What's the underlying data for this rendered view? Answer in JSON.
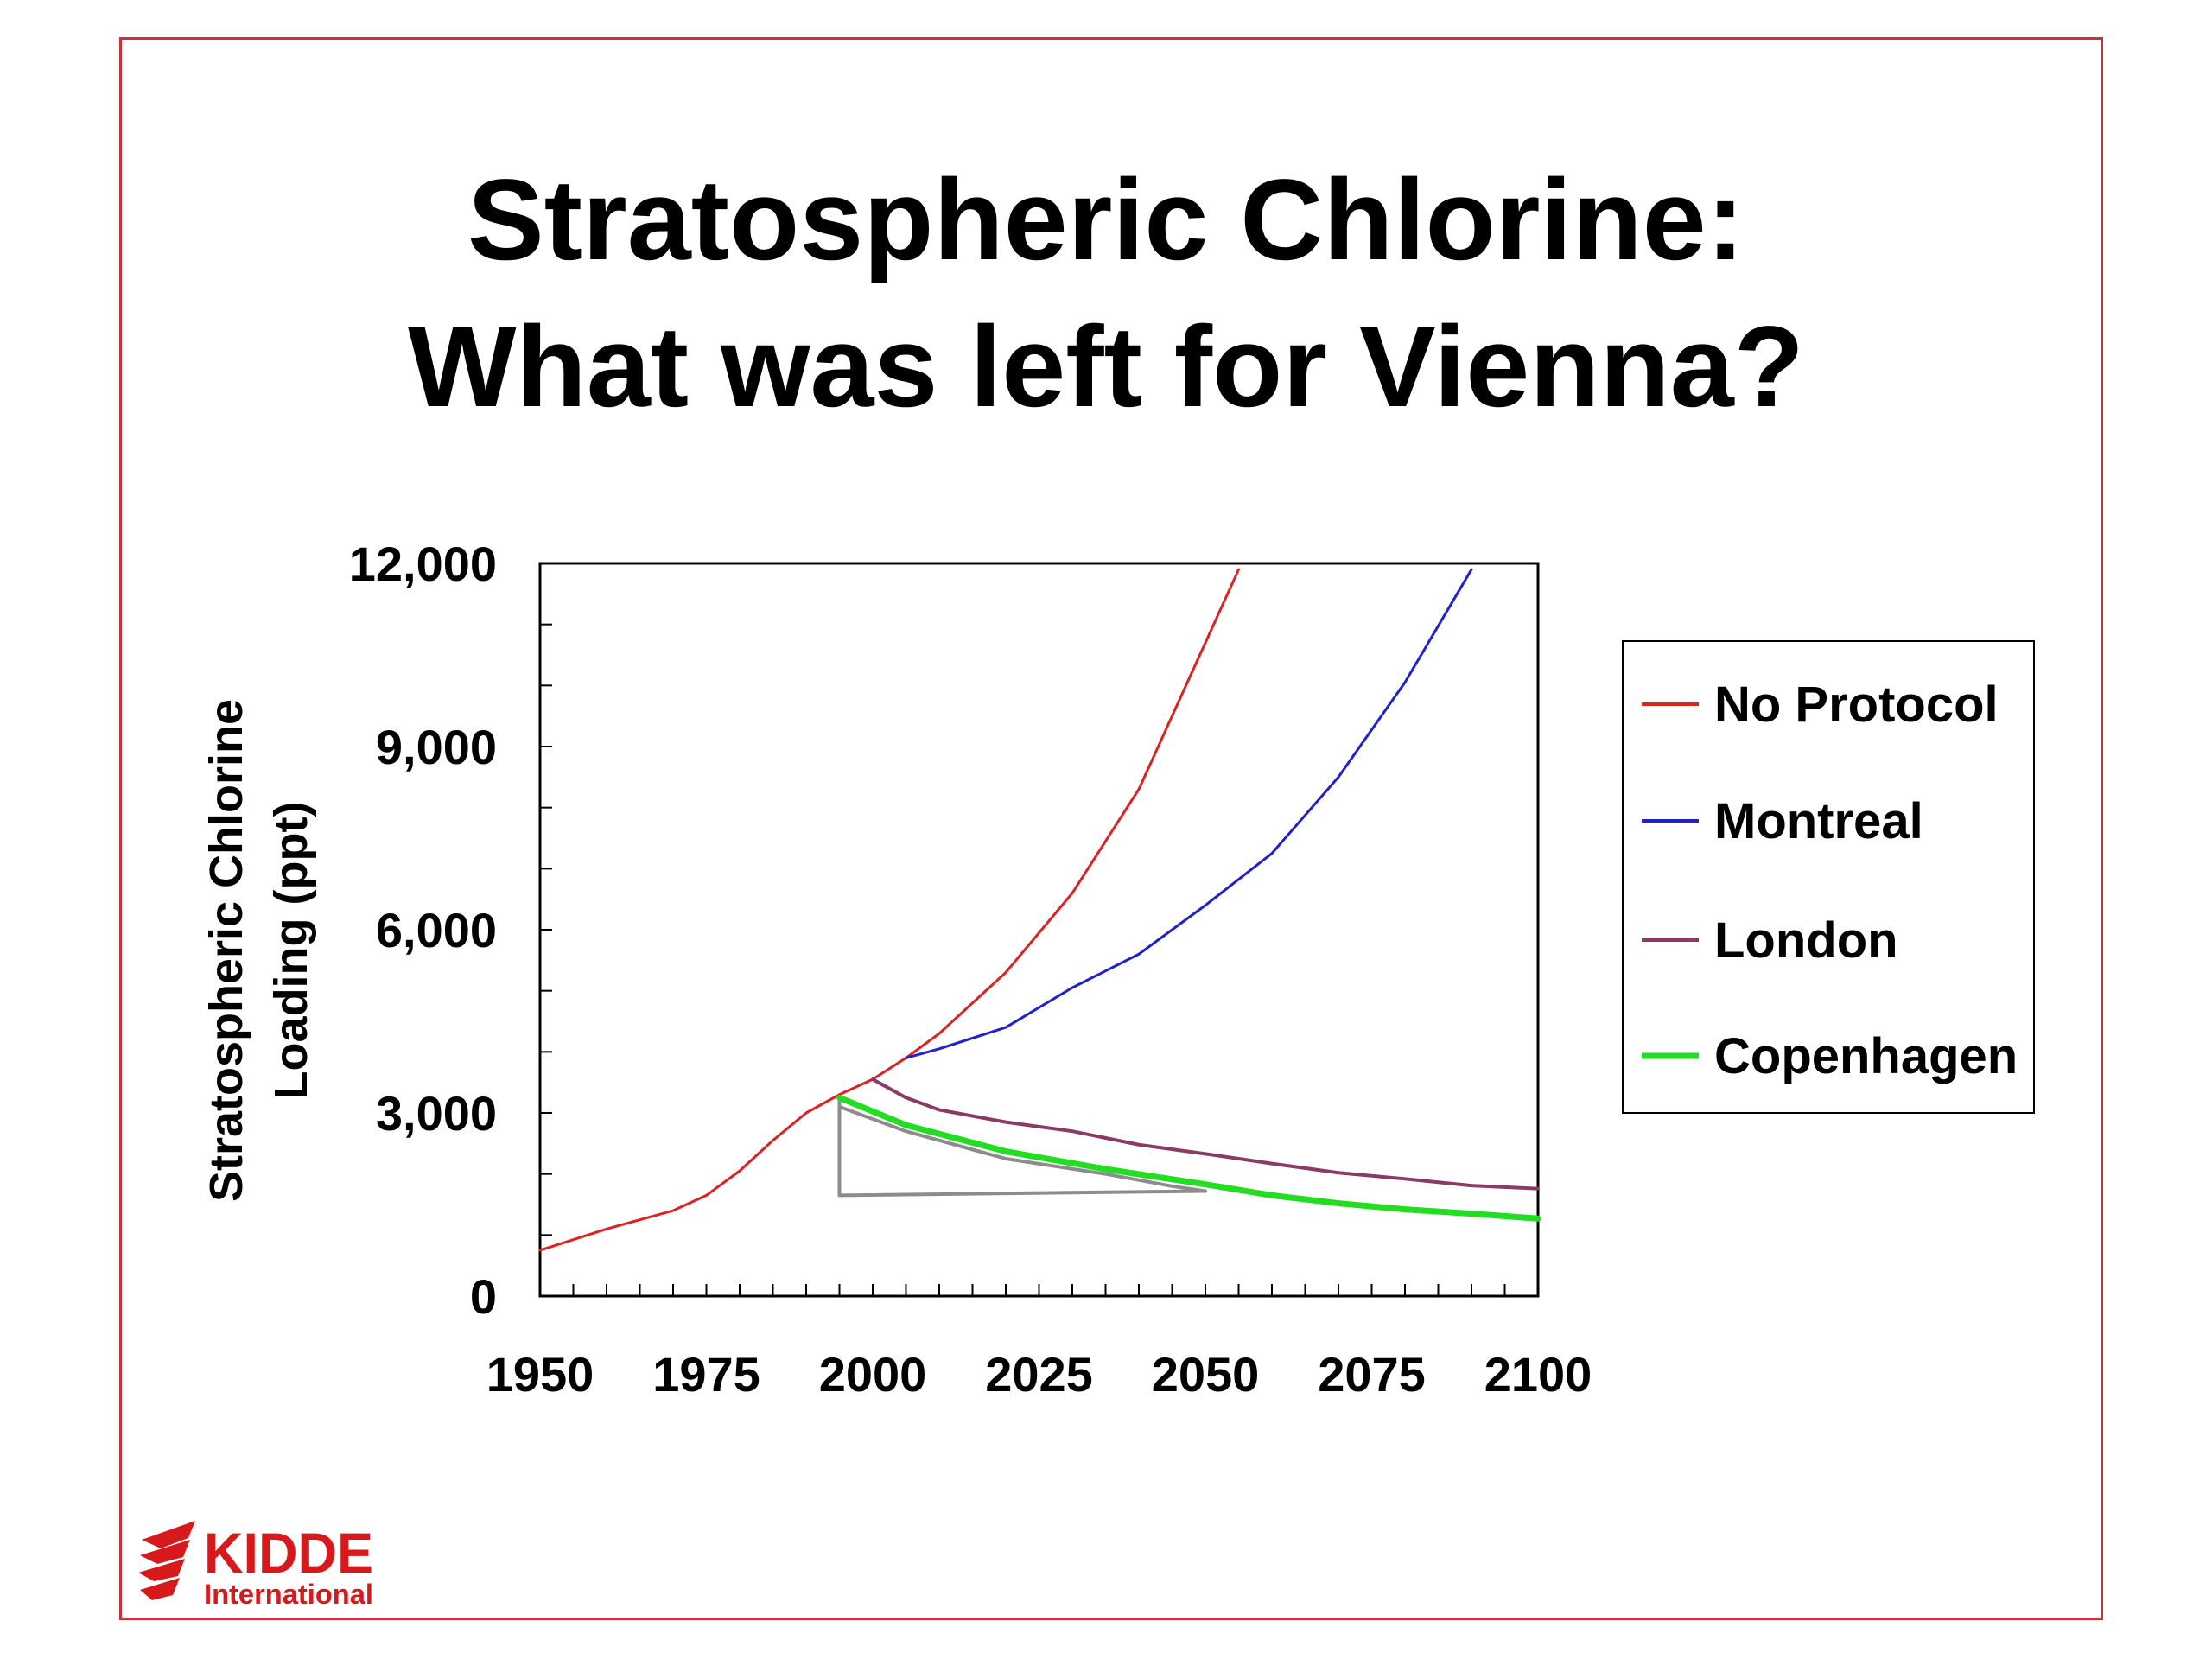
{
  "title_lines": [
    "Stratospheric Chlorine:",
    "What was left for Vienna?"
  ],
  "logo": {
    "line1": "KIDDE",
    "line2": "International",
    "color": "#d7191c"
  },
  "chart_data": {
    "type": "line",
    "title": "Stratospheric Chlorine: What was left for Vienna?",
    "ylabel_lines": [
      "Stratospheric Chlorine",
      "Loading (ppt)"
    ],
    "xlabel": "",
    "xlim": [
      1950,
      2100
    ],
    "ylim": [
      0,
      12000
    ],
    "x_ticks": [
      1950,
      1975,
      2000,
      2025,
      2050,
      2075,
      2100
    ],
    "x_tick_labels": [
      "1950",
      "1975",
      "2000",
      "2025",
      "2050",
      "2075",
      "2100"
    ],
    "y_ticks": [
      0,
      3000,
      6000,
      9000,
      12000
    ],
    "y_tick_labels": [
      "0",
      "3,000",
      "6,000",
      "9,000",
      "12,000"
    ],
    "grid": false,
    "legend_position": "right",
    "series": [
      {
        "name": "No Protocol",
        "color": "#dd2222",
        "width": 3,
        "points": [
          [
            1950,
            750
          ],
          [
            1960,
            1100
          ],
          [
            1970,
            1400
          ],
          [
            1975,
            1650
          ],
          [
            1980,
            2050
          ],
          [
            1985,
            2550
          ],
          [
            1990,
            3000
          ],
          [
            1995,
            3300
          ],
          [
            2000,
            3550
          ],
          [
            2005,
            3900
          ],
          [
            2010,
            4300
          ],
          [
            2020,
            5300
          ],
          [
            2030,
            6600
          ],
          [
            2040,
            8300
          ],
          [
            2050,
            10700
          ],
          [
            2055,
            11900
          ]
        ]
      },
      {
        "name": "Montreal",
        "color": "#2222cc",
        "width": 3,
        "points": [
          [
            2005,
            3900
          ],
          [
            2010,
            4050
          ],
          [
            2020,
            4400
          ],
          [
            2030,
            5050
          ],
          [
            2040,
            5600
          ],
          [
            2050,
            6400
          ],
          [
            2060,
            7250
          ],
          [
            2070,
            8500
          ],
          [
            2080,
            10050
          ],
          [
            2090,
            11900
          ]
        ]
      },
      {
        "name": "London",
        "color": "#8a3a63",
        "width": 4,
        "points": [
          [
            2000,
            3550
          ],
          [
            2005,
            3250
          ],
          [
            2010,
            3050
          ],
          [
            2020,
            2850
          ],
          [
            2030,
            2700
          ],
          [
            2040,
            2480
          ],
          [
            2050,
            2330
          ],
          [
            2060,
            2170
          ],
          [
            2070,
            2020
          ],
          [
            2080,
            1920
          ],
          [
            2090,
            1810
          ],
          [
            2100,
            1760
          ]
        ]
      },
      {
        "name": "Copenhagen",
        "color": "#22dd22",
        "width": 7,
        "points": [
          [
            1995,
            3250
          ],
          [
            2005,
            2800
          ],
          [
            2020,
            2370
          ],
          [
            2035,
            2080
          ],
          [
            2050,
            1830
          ],
          [
            2060,
            1650
          ],
          [
            2070,
            1520
          ],
          [
            2080,
            1420
          ],
          [
            2090,
            1350
          ],
          [
            2100,
            1270
          ]
        ]
      }
    ],
    "annotation_outline": {
      "color": "#8c8c8c",
      "points": [
        [
          1995,
          3250
        ],
        [
          1995,
          1650
        ],
        [
          2050,
          1720
        ],
        [
          2045,
          1800
        ],
        [
          2035,
          2000
        ],
        [
          2020,
          2250
        ],
        [
          2005,
          2700
        ],
        [
          1995,
          3100
        ]
      ]
    }
  }
}
